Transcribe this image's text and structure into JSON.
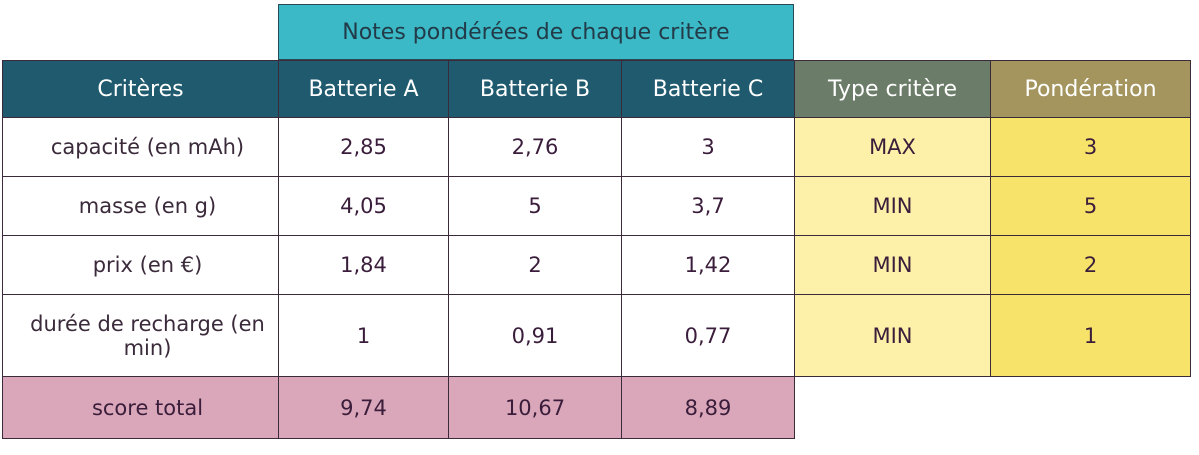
{
  "group_header": "Notes pondérées de chaque critère",
  "headers": {
    "criteria": "Critères",
    "battery_a": "Batterie A",
    "battery_b": "Batterie B",
    "battery_c": "Batterie C",
    "type": "Type critère",
    "weight": "Pondération"
  },
  "rows": [
    {
      "label": "capacité (en mAh)",
      "a": "2,85",
      "b": "2,76",
      "c": "3",
      "type": "MAX",
      "weight": "3"
    },
    {
      "label": "masse (en g)",
      "a": "4,05",
      "b": "5",
      "c": "3,7",
      "type": "MIN",
      "weight": "5"
    },
    {
      "label": "prix (en €)",
      "a": "1,84",
      "b": "2",
      "c": "1,42",
      "type": "MIN",
      "weight": "2"
    },
    {
      "label": "durée de recharge (en min)",
      "a": "1",
      "b": "0,91",
      "c": "0,77",
      "type": "MIN",
      "weight": "1"
    }
  ],
  "total": {
    "label": "score total",
    "a": "9,74",
    "b": "10,67",
    "c": "8,89"
  },
  "colors": {
    "header_teal": "#1f5a6e",
    "group_cyan": "#3bb9c6",
    "type_header": "#6b7d68",
    "weight_header": "#a3955d",
    "type_cell": "#fdf0a8",
    "weight_cell": "#f8e36a",
    "total_row": "#d9a7b9"
  }
}
